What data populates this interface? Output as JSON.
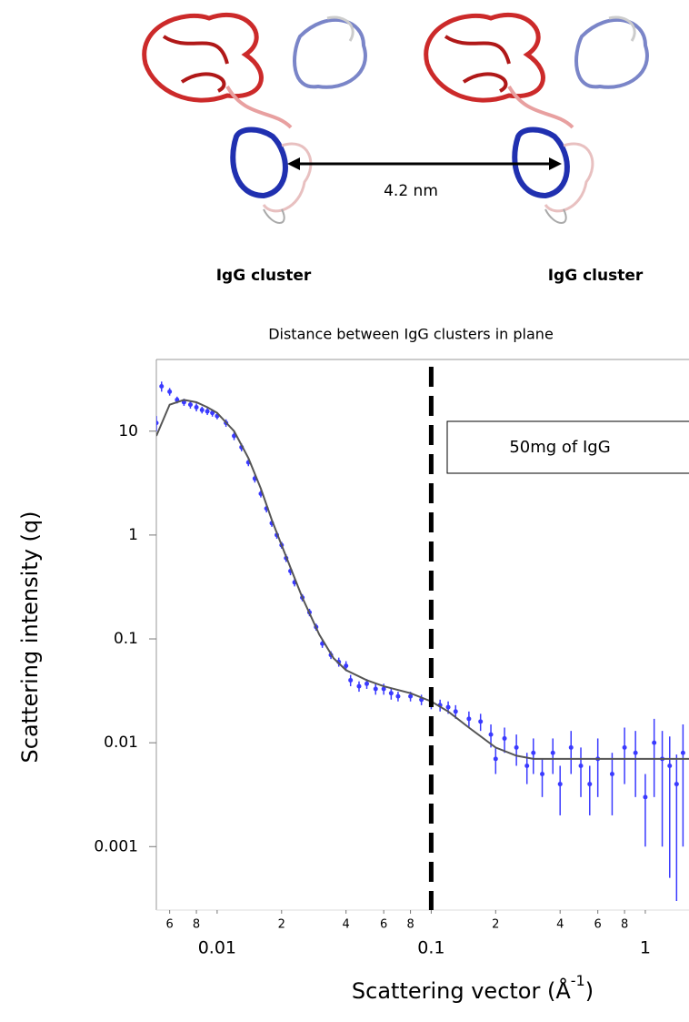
{
  "header": {
    "labels": [
      "IgG cluster",
      "IgG cluster"
    ],
    "distance": "4.2 nm"
  },
  "chart_data": {
    "type": "scatter",
    "title": "Distance between IgG clusters in plane",
    "x_label": [
      "Scattering vector (Å",
      "-1",
      ")"
    ],
    "y_label": "Scattering intensity (q)",
    "annotation": "50mg of IgG",
    "vline": 0.1,
    "xscale": "log",
    "yscale": "log",
    "xlim": [
      0.0052,
      1.6
    ],
    "ylim": [
      0.000245,
      49
    ],
    "xticks": [
      {
        "value": 0.006,
        "label": "6"
      },
      {
        "value": 0.008,
        "label": "8"
      },
      0.01,
      {
        "value": 0.02,
        "label": "2"
      },
      {
        "value": 0.04,
        "label": "4"
      },
      {
        "value": 0.06,
        "label": "6"
      },
      {
        "value": 0.08,
        "label": "8"
      },
      0.1,
      {
        "value": 0.2,
        "label": "2"
      },
      {
        "value": 0.4,
        "label": "4"
      },
      {
        "value": 0.6,
        "label": "6"
      },
      {
        "value": 0.8,
        "label": "8"
      },
      1
    ],
    "yticks": [
      10,
      1,
      0.1,
      0.01,
      0.001
    ],
    "series": [
      {
        "style": "points",
        "color": "#3a3aff",
        "x": [
          0.0052,
          0.0055,
          0.006,
          0.0065,
          0.007,
          0.0075,
          0.008,
          0.0085,
          0.009,
          0.0095,
          0.01,
          0.011,
          0.012,
          0.013,
          0.014,
          0.015,
          0.016,
          0.017,
          0.018,
          0.019,
          0.02,
          0.021,
          0.022,
          0.023,
          0.025,
          0.027,
          0.029,
          0.031,
          0.034,
          0.037,
          0.04,
          0.042,
          0.046,
          0.05,
          0.055,
          0.06,
          0.065,
          0.07,
          0.08,
          0.09,
          0.1,
          0.11,
          0.12,
          0.13,
          0.15,
          0.17,
          0.19,
          0.2,
          0.22,
          0.25,
          0.28,
          0.3,
          0.33,
          0.37,
          0.4,
          0.45,
          0.5,
          0.55,
          0.6,
          0.7,
          0.8,
          0.9,
          1.0,
          1.1,
          1.2,
          1.3,
          1.4,
          1.5
        ],
        "values": [
          12,
          27,
          24,
          20,
          19,
          18,
          17,
          16,
          15.5,
          15,
          14,
          12,
          9,
          7,
          5,
          3.5,
          2.5,
          1.8,
          1.3,
          1.0,
          0.8,
          0.6,
          0.45,
          0.35,
          0.25,
          0.18,
          0.13,
          0.09,
          0.07,
          0.06,
          0.055,
          0.04,
          0.035,
          0.037,
          0.033,
          0.033,
          0.03,
          0.028,
          0.028,
          0.026,
          0.024,
          0.023,
          0.022,
          0.02,
          0.017,
          0.016,
          0.012,
          0.007,
          0.011,
          0.009,
          0.006,
          0.008,
          0.005,
          0.008,
          0.004,
          0.009,
          0.006,
          0.004,
          0.007,
          0.005,
          0.009,
          0.008,
          0.003,
          0.01,
          0.007,
          0.006,
          0.004,
          0.008
        ],
        "errors": [
          2,
          3,
          2,
          1.5,
          1.5,
          1.5,
          1.5,
          1.2,
          1.2,
          1.2,
          1,
          1,
          0.8,
          0.6,
          0.4,
          0.3,
          0.2,
          0.15,
          0.1,
          0.08,
          0.06,
          0.05,
          0.04,
          0.03,
          0.02,
          0.015,
          0.01,
          0.008,
          0.006,
          0.006,
          0.006,
          0.005,
          0.004,
          0.004,
          0.004,
          0.004,
          0.004,
          0.003,
          0.003,
          0.003,
          0.003,
          0.003,
          0.003,
          0.003,
          0.003,
          0.003,
          0.003,
          0.002,
          0.003,
          0.003,
          0.002,
          0.003,
          0.002,
          0.003,
          0.002,
          0.004,
          0.003,
          0.002,
          0.004,
          0.003,
          0.005,
          0.005,
          0.002,
          0.007,
          0.006,
          0.0055,
          0.0037,
          0.007
        ]
      },
      {
        "style": "line",
        "color": "#555555",
        "x": [
          0.0052,
          0.006,
          0.007,
          0.008,
          0.009,
          0.01,
          0.012,
          0.014,
          0.016,
          0.018,
          0.02,
          0.025,
          0.03,
          0.035,
          0.04,
          0.05,
          0.06,
          0.08,
          0.1,
          0.12,
          0.15,
          0.2,
          0.25,
          0.3,
          0.4,
          0.6,
          1,
          1.6
        ],
        "values": [
          9,
          18,
          20,
          19,
          17,
          15,
          10,
          5.5,
          2.8,
          1.4,
          0.8,
          0.25,
          0.11,
          0.065,
          0.05,
          0.04,
          0.035,
          0.03,
          0.025,
          0.02,
          0.014,
          0.009,
          0.0075,
          0.007,
          0.007,
          0.007,
          0.007,
          0.007
        ]
      }
    ]
  }
}
